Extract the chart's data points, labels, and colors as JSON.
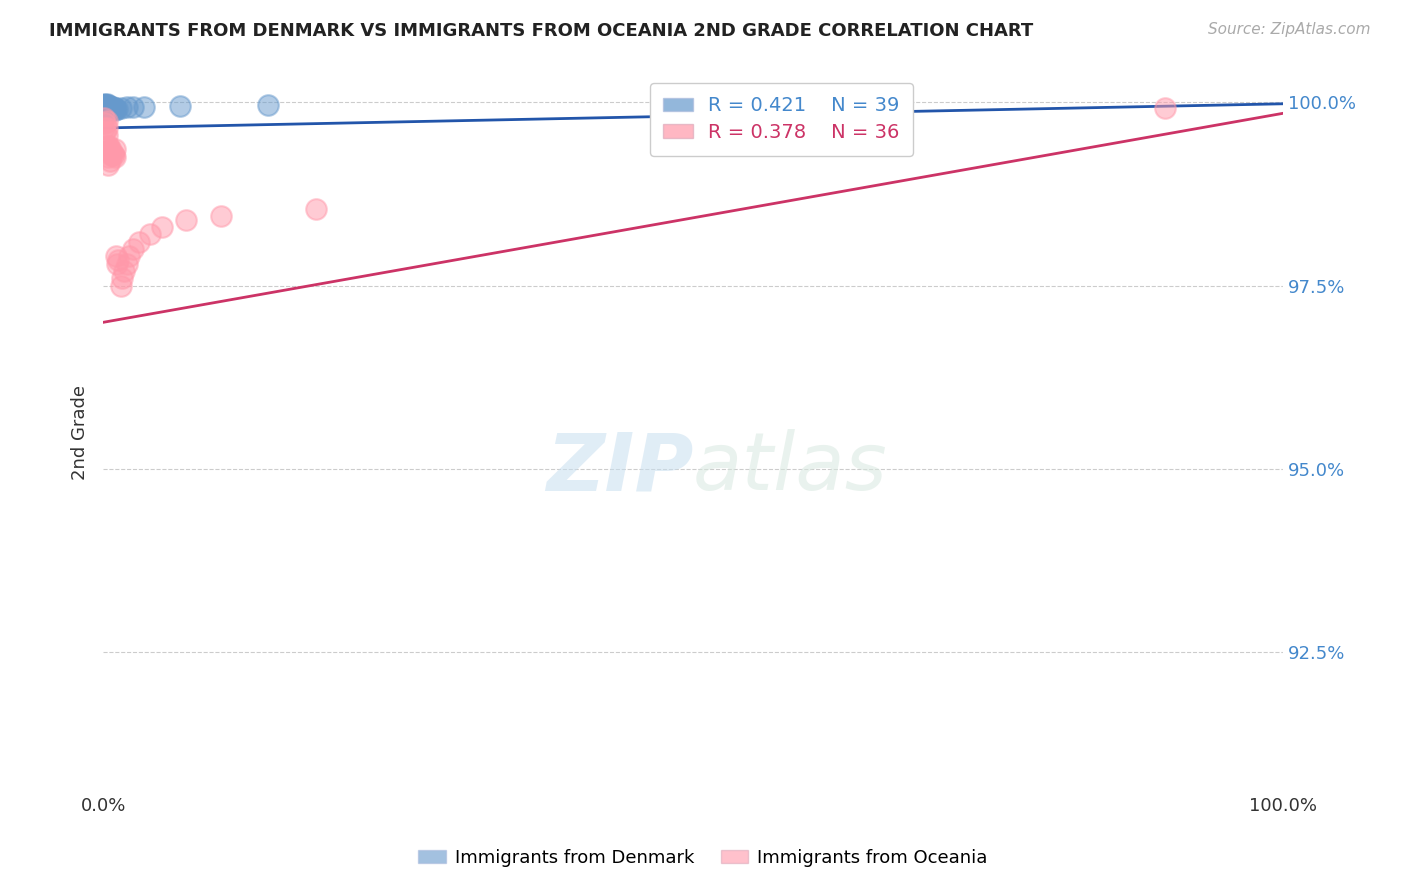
{
  "title": "IMMIGRANTS FROM DENMARK VS IMMIGRANTS FROM OCEANIA 2ND GRADE CORRELATION CHART",
  "source_text": "Source: ZipAtlas.com",
  "ylabel": "2nd Grade",
  "legend_labels": [
    "Immigrants from Denmark",
    "Immigrants from Oceania"
  ],
  "R_denmark": 0.421,
  "N_denmark": 39,
  "R_oceania": 0.378,
  "N_oceania": 36,
  "color_denmark": "#6699cc",
  "color_oceania": "#ff99aa",
  "line_color_denmark": "#2255aa",
  "line_color_oceania": "#cc3366",
  "xlim": [
    0.0,
    1.0
  ],
  "ylim": [
    0.906,
    1.004
  ],
  "yticks": [
    0.925,
    0.95,
    0.975,
    1.0
  ],
  "ytick_labels": [
    "92.5%",
    "95.0%",
    "97.5%",
    "100.0%"
  ],
  "xtick_labels": [
    "0.0%",
    "100.0%"
  ],
  "xticks": [
    0.0,
    1.0
  ],
  "denmark_x": [
    0.001,
    0.001,
    0.001,
    0.002,
    0.002,
    0.002,
    0.002,
    0.003,
    0.003,
    0.003,
    0.003,
    0.003,
    0.003,
    0.003,
    0.004,
    0.004,
    0.004,
    0.004,
    0.005,
    0.005,
    0.005,
    0.005,
    0.006,
    0.006,
    0.006,
    0.007,
    0.007,
    0.008,
    0.008,
    0.009,
    0.01,
    0.01,
    0.012,
    0.015,
    0.02,
    0.025,
    0.035,
    0.065,
    0.14
  ],
  "denmark_y": [
    0.9998,
    0.9997,
    0.9996,
    0.9997,
    0.9996,
    0.9994,
    0.9993,
    0.9998,
    0.9996,
    0.9995,
    0.9994,
    0.9992,
    0.9991,
    0.999,
    0.9996,
    0.9994,
    0.9992,
    0.9991,
    0.9995,
    0.9993,
    0.9992,
    0.9991,
    0.9994,
    0.9993,
    0.9992,
    0.9993,
    0.9992,
    0.9993,
    0.9991,
    0.9992,
    0.9992,
    0.999,
    0.9991,
    0.9992,
    0.9993,
    0.9994,
    0.9994,
    0.9995,
    0.9997
  ],
  "oceania_x": [
    0.001,
    0.001,
    0.002,
    0.002,
    0.003,
    0.003,
    0.003,
    0.004,
    0.004,
    0.004,
    0.005,
    0.005,
    0.006,
    0.006,
    0.007,
    0.007,
    0.008,
    0.009,
    0.01,
    0.01,
    0.011,
    0.012,
    0.013,
    0.015,
    0.016,
    0.018,
    0.02,
    0.022,
    0.025,
    0.03,
    0.04,
    0.05,
    0.07,
    0.1,
    0.18,
    0.9
  ],
  "oceania_y": [
    0.9978,
    0.9965,
    0.9972,
    0.996,
    0.9975,
    0.9965,
    0.9955,
    0.994,
    0.9925,
    0.9915,
    0.994,
    0.9935,
    0.9932,
    0.992,
    0.9935,
    0.9928,
    0.993,
    0.9928,
    0.9936,
    0.9925,
    0.979,
    0.978,
    0.9785,
    0.975,
    0.976,
    0.977,
    0.978,
    0.979,
    0.98,
    0.981,
    0.982,
    0.983,
    0.984,
    0.9845,
    0.9855,
    0.9992
  ],
  "watermark_text": "ZIPatlas",
  "grid_color": "#cccccc",
  "background_color": "#ffffff"
}
